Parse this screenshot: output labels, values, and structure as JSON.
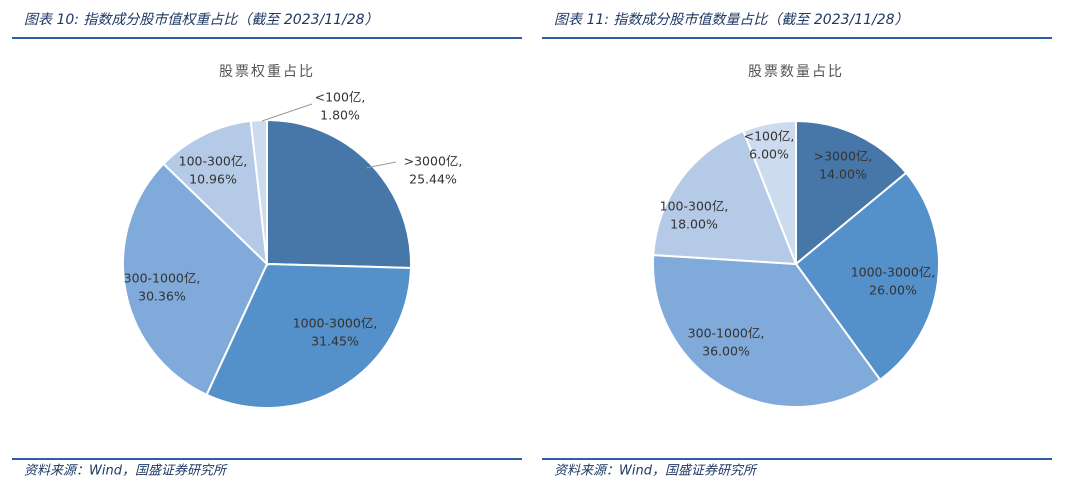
{
  "captions": [
    "图表 10:  指数成分股市值权重占比（截至 2023/11/28）",
    "图表 11:  指数成分股市值数量占比（截至 2023/11/28）"
  ],
  "sources": [
    "资料来源：Wind，国盛证券研究所",
    "资料来源：Wind，国盛证券研究所"
  ],
  "chart_data": [
    {
      "type": "pie",
      "title": "股票权重占比",
      "categories": [
        ">3000亿,",
        "1000-3000亿,",
        "300-1000亿,",
        "100-300亿,",
        "<100亿,"
      ],
      "values": [
        25.44,
        31.45,
        30.36,
        10.96,
        1.8
      ],
      "value_labels": [
        "25.44%",
        "31.45%",
        "30.36%",
        "10.96%",
        "1.80%"
      ],
      "colors": [
        "#4677a8",
        "#5490c9",
        "#80aad9",
        "#b4cae6",
        "#cddbee"
      ]
    },
    {
      "type": "pie",
      "title": "股票数量占比",
      "categories": [
        ">3000亿,",
        "1000-3000亿,",
        "300-1000亿,",
        "100-300亿,",
        "<100亿,"
      ],
      "values": [
        14,
        26,
        36,
        18,
        6
      ],
      "value_labels": [
        "14.00%",
        "26.00%",
        "36.00%",
        "18.00%",
        "6.00%"
      ],
      "colors": [
        "#4677a8",
        "#5490c9",
        "#80aad9",
        "#b4cae6",
        "#cddbee"
      ]
    }
  ]
}
